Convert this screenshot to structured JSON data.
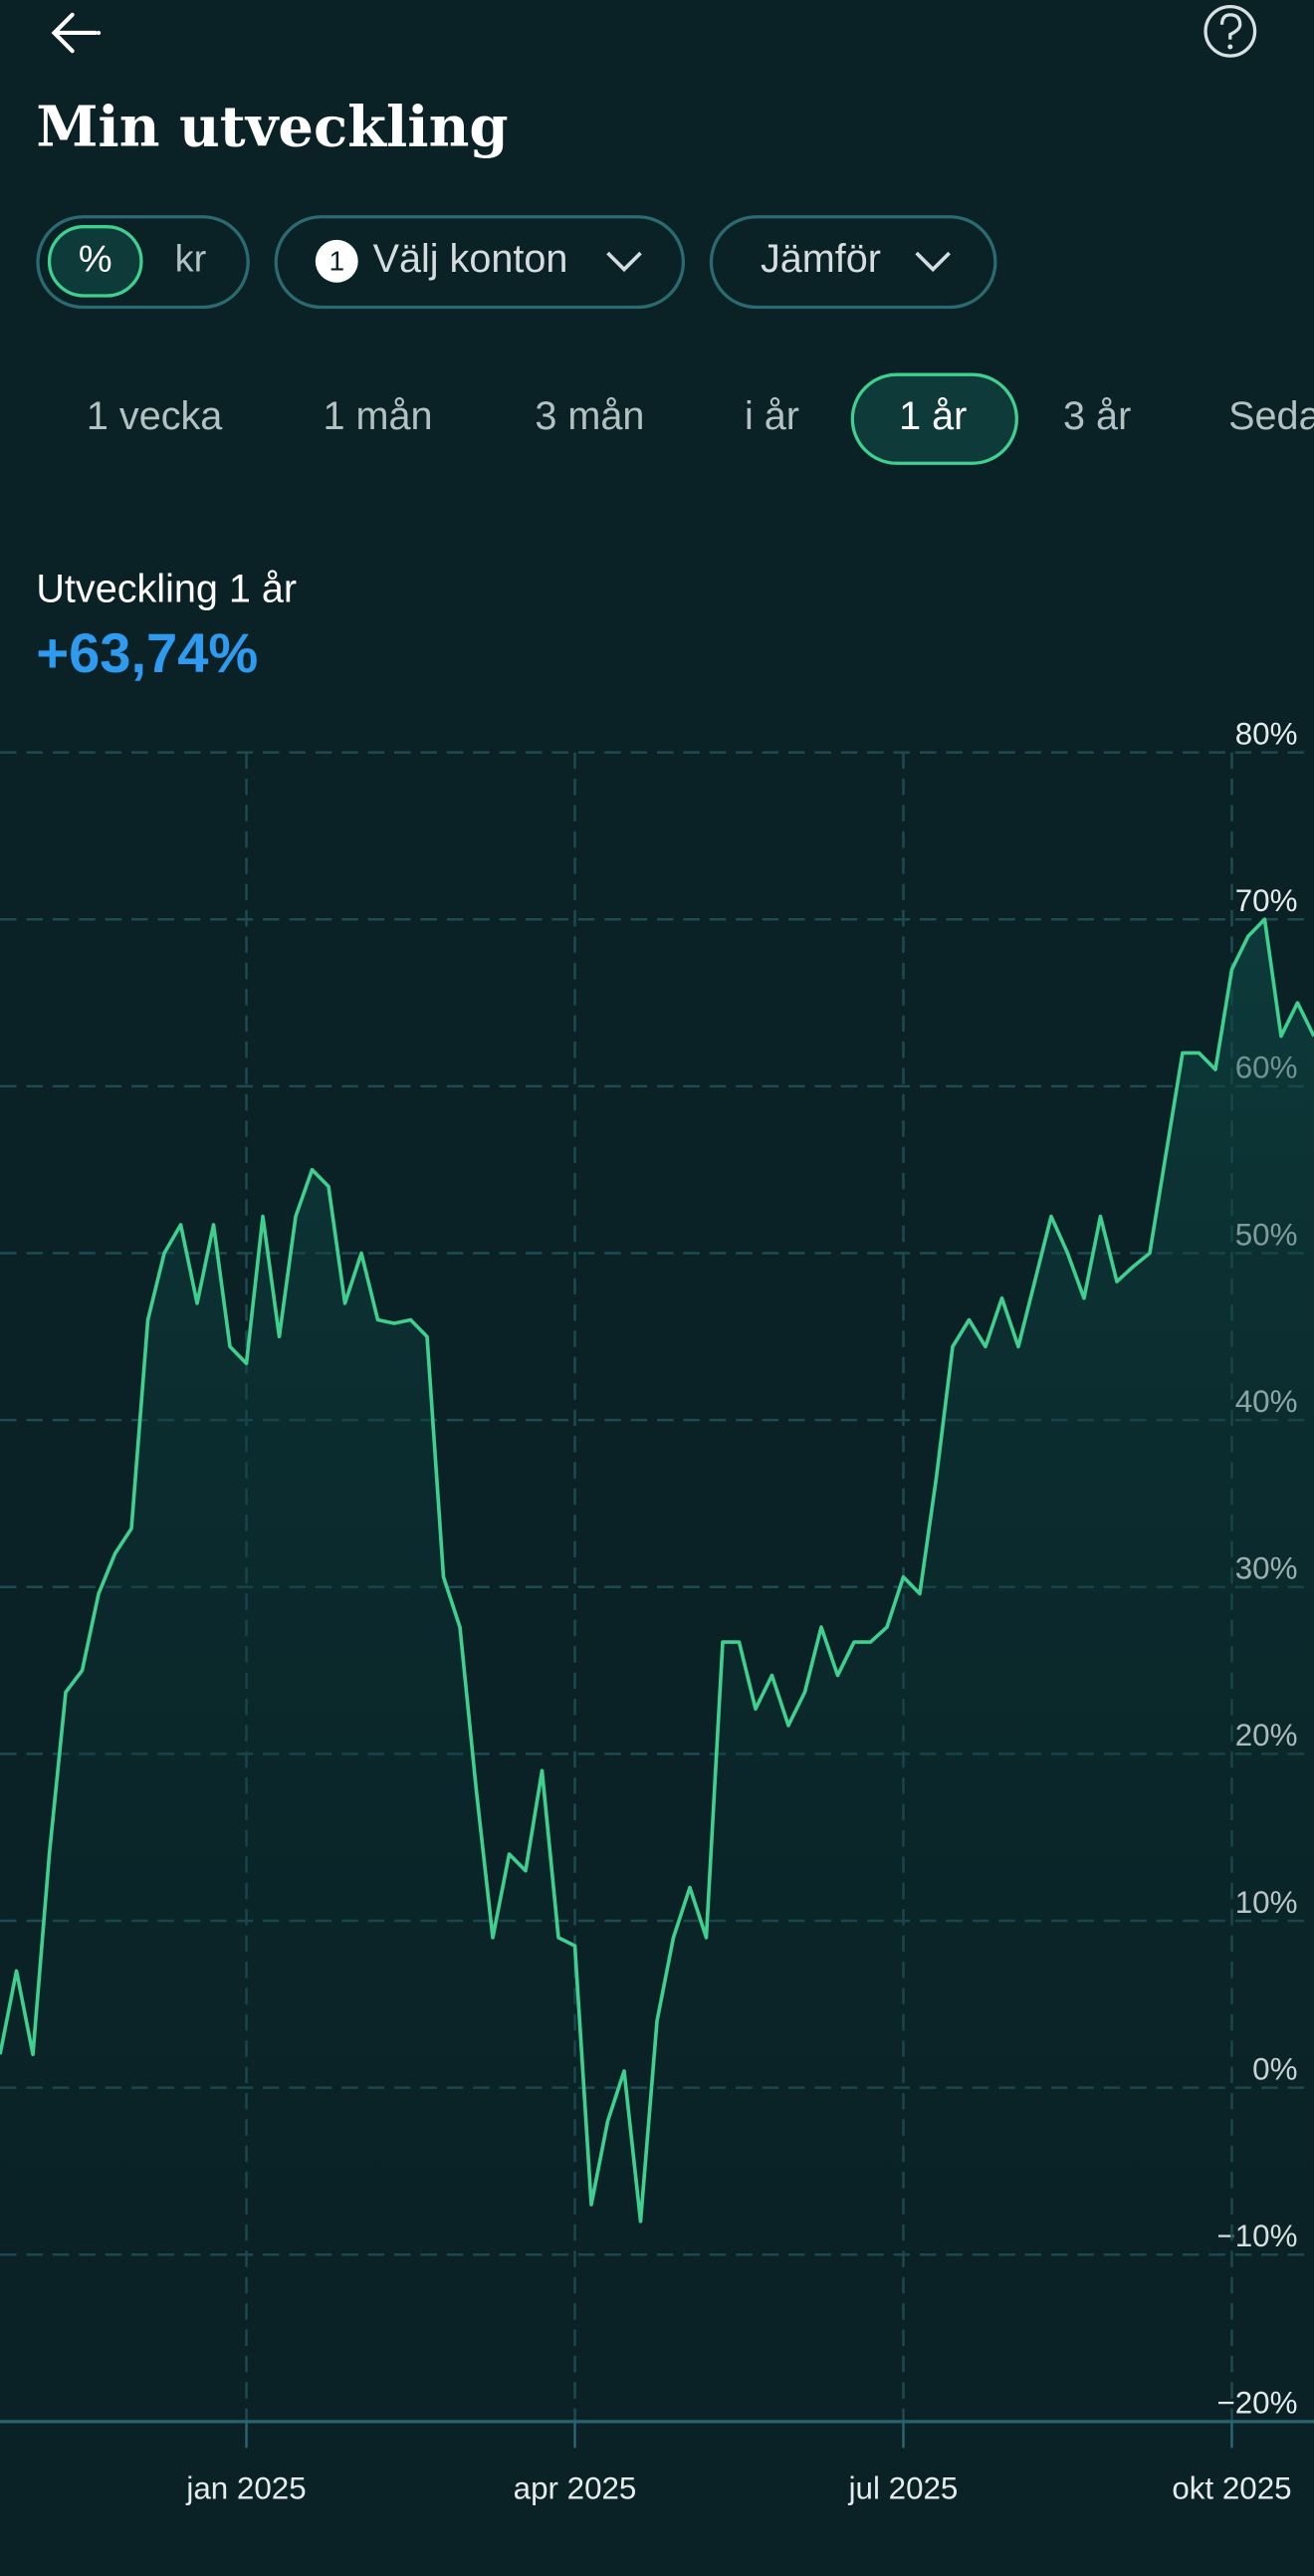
{
  "header": {
    "title": "Min utveckling"
  },
  "toggles": {
    "unit_percent": "%",
    "unit_kr": "kr",
    "accounts_badge": "1",
    "accounts": "Välj konton",
    "compare": "Jämför"
  },
  "tabs": [
    "1 vecka",
    "1 mån",
    "3 mån",
    "i år",
    "1 år",
    "3 år",
    "Seda"
  ],
  "performance": {
    "label": "Utveckling 1 år",
    "value": "+63,74%"
  },
  "chart_data": {
    "type": "line",
    "color": "#3fcf8e",
    "grid": true,
    "categories": [
      null,
      null,
      null,
      null,
      null,
      null,
      null,
      null,
      null,
      null,
      null,
      null,
      null,
      null,
      null,
      "jan 2025",
      null,
      null,
      null,
      null,
      null,
      null,
      null,
      null,
      null,
      null,
      null,
      null,
      null,
      null,
      null,
      null,
      null,
      null,
      null,
      "apr 2025",
      null,
      null,
      null,
      null,
      null,
      null,
      null,
      null,
      null,
      null,
      null,
      null,
      null,
      null,
      null,
      null,
      null,
      null,
      null,
      "jul 2025",
      null,
      null,
      null,
      null,
      null,
      null,
      null,
      null,
      null,
      null,
      null,
      null,
      null,
      null,
      null,
      null,
      null,
      null,
      null,
      "okt 2025",
      null,
      null,
      null,
      null,
      null
    ],
    "values": [
      2,
      7,
      2,
      14,
      23.7,
      25,
      29.6,
      32,
      33.5,
      46,
      50,
      51.7,
      47,
      51.7,
      44.4,
      43.4,
      52.2,
      45,
      52.2,
      55,
      54,
      47,
      50,
      46,
      45.8,
      46,
      45,
      30.6,
      27.6,
      17.8,
      9,
      14,
      13,
      19,
      9,
      8.5,
      -7,
      -2,
      1,
      -8,
      4,
      9,
      12,
      9,
      26.7,
      26.7,
      22.7,
      24.7,
      21.7,
      23.7,
      27.6,
      24.7,
      26.7,
      26.7,
      27.6,
      30.6,
      29.6,
      36.5,
      44.4,
      46,
      44.4,
      47.3,
      44.4,
      48.3,
      52.2,
      50,
      47.3,
      52.2,
      48.3,
      49.2,
      50,
      56,
      62,
      62,
      61,
      67,
      69,
      70,
      63,
      65,
      63
    ],
    "ylim": [
      -20,
      80
    ],
    "yticks": [
      {
        "value": -20,
        "label": "−20%"
      },
      {
        "value": -10,
        "label": "−10%"
      },
      {
        "value": 0,
        "label": "0%"
      },
      {
        "value": 10,
        "label": "10%"
      },
      {
        "value": 20,
        "label": "20%"
      },
      {
        "value": 30,
        "label": "30%"
      },
      {
        "value": 40,
        "label": "40%"
      },
      {
        "value": 50,
        "label": "50%"
      },
      {
        "value": 60,
        "label": "60%"
      },
      {
        "value": 70,
        "label": "70%"
      },
      {
        "value": 80,
        "label": "80%"
      }
    ]
  }
}
